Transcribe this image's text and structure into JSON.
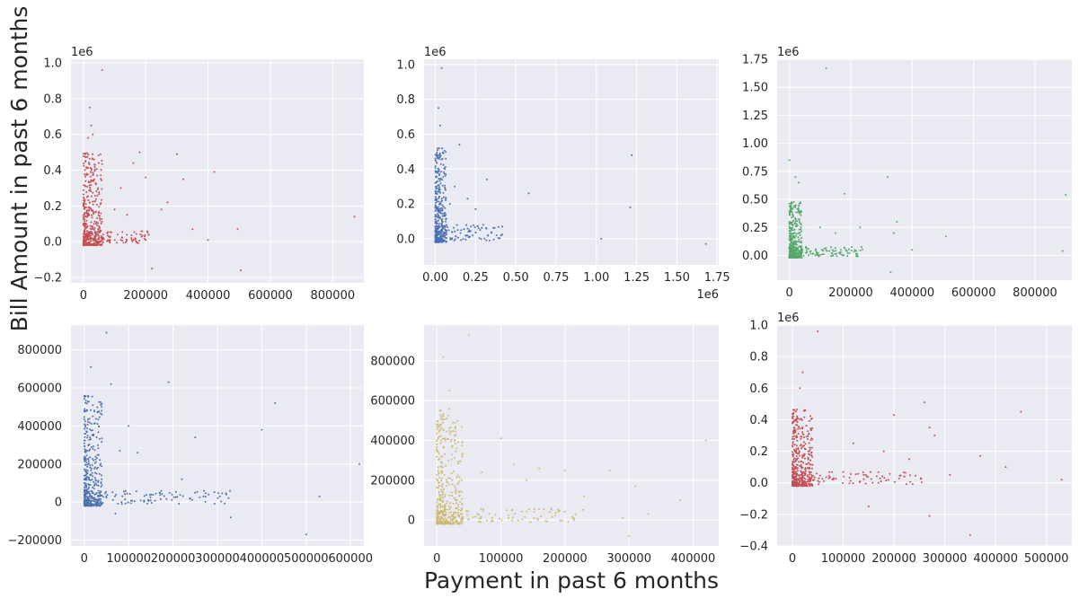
{
  "figure": {
    "ylabel": "Bill Amount in past 6 months",
    "xlabel": "Payment in past 6 months",
    "colors": {
      "background": "#eaeaf2",
      "grid": "#ffffff",
      "text": "#262626"
    }
  },
  "chart_data": [
    {
      "type": "scatter",
      "color": "#c44e52",
      "xlim": [
        -40000,
        900000
      ],
      "ylim": [
        -0.23,
        1.02
      ],
      "xticks": [
        0,
        200000,
        400000,
        600000,
        800000
      ],
      "xticklabels": [
        "0",
        "200000",
        "400000",
        "600000",
        "800000"
      ],
      "yticks": [
        -0.2,
        0,
        0.2,
        0.4,
        0.6,
        0.8,
        1.0
      ],
      "yticklabels": [
        "−0.2",
        "0.0",
        "0.2",
        "0.4",
        "0.6",
        "0.8",
        "1.0"
      ],
      "yoffset": "1e6",
      "xoffset": "",
      "bulk": {
        "xmax": 60000,
        "ymin": -0.02,
        "ymax": 0.5,
        "n": 380,
        "seed": 11
      },
      "tail": {
        "xmax": 210000,
        "ymin": -0.01,
        "ymax": 0.06,
        "n": 110,
        "seed": 12
      },
      "points": [
        [
          60000,
          0.96
        ],
        [
          20000,
          0.75
        ],
        [
          25000,
          0.65
        ],
        [
          30000,
          0.6
        ],
        [
          15000,
          0.58
        ],
        [
          180000,
          0.5
        ],
        [
          300000,
          0.49
        ],
        [
          420000,
          0.39
        ],
        [
          200000,
          0.36
        ],
        [
          320000,
          0.35
        ],
        [
          160000,
          0.44
        ],
        [
          250000,
          0.18
        ],
        [
          270000,
          0.22
        ],
        [
          350000,
          0.07
        ],
        [
          495000,
          0.07
        ],
        [
          400000,
          0.01
        ],
        [
          870000,
          0.14
        ],
        [
          220000,
          -0.15
        ],
        [
          505000,
          -0.16
        ],
        [
          120000,
          0.3
        ],
        [
          100000,
          0.18
        ],
        [
          140000,
          0.15
        ]
      ]
    },
    {
      "type": "scatter",
      "color": "#4c72b0",
      "xlim": [
        -70000,
        1760000
      ],
      "ylim": [
        -0.15,
        1.03
      ],
      "xticks": [
        0,
        250000,
        500000,
        750000,
        1000000,
        1250000,
        1500000,
        1750000
      ],
      "xticklabels": [
        "0.00",
        "0.25",
        "0.50",
        "0.75",
        "1.00",
        "1.25",
        "1.50",
        "1.75"
      ],
      "yticks": [
        0,
        0.2,
        0.4,
        0.6,
        0.8,
        1.0
      ],
      "yticklabels": [
        "0.0",
        "0.2",
        "0.4",
        "0.6",
        "0.8",
        "1.0"
      ],
      "yoffset": "1e6",
      "xoffset": "1e6",
      "bulk": {
        "xmax": 70000,
        "ymin": -0.02,
        "ymax": 0.52,
        "n": 380,
        "seed": 21
      },
      "tail": {
        "xmax": 420000,
        "ymin": -0.01,
        "ymax": 0.08,
        "n": 110,
        "seed": 22
      },
      "points": [
        [
          40000,
          0.98
        ],
        [
          20000,
          0.75
        ],
        [
          30000,
          0.65
        ],
        [
          150000,
          0.54
        ],
        [
          320000,
          0.34
        ],
        [
          580000,
          0.26
        ],
        [
          1220000,
          0.48
        ],
        [
          1210000,
          0.18
        ],
        [
          1030000,
          0.0
        ],
        [
          1680000,
          -0.03
        ],
        [
          120000,
          0.3
        ],
        [
          200000,
          0.23
        ],
        [
          250000,
          0.17
        ],
        [
          90000,
          0.2
        ],
        [
          60000,
          0.4
        ]
      ]
    },
    {
      "type": "scatter",
      "color": "#55a868",
      "xlim": [
        -40000,
        920000
      ],
      "ylim": [
        -0.22,
        1.75
      ],
      "xticks": [
        0,
        200000,
        400000,
        600000,
        800000
      ],
      "xticklabels": [
        "0",
        "200000",
        "400000",
        "600000",
        "800000"
      ],
      "yticks": [
        0,
        0.25,
        0.5,
        0.75,
        1.0,
        1.25,
        1.5,
        1.75
      ],
      "yticklabels": [
        "0.00",
        "0.25",
        "0.50",
        "0.75",
        "1.00",
        "1.25",
        "1.50",
        "1.75"
      ],
      "yoffset": "1e6",
      "xoffset": "",
      "bulk": {
        "xmax": 40000,
        "ymin": -0.02,
        "ymax": 0.48,
        "n": 380,
        "seed": 31
      },
      "tail": {
        "xmax": 240000,
        "ymin": -0.01,
        "ymax": 0.08,
        "n": 110,
        "seed": 32
      },
      "points": [
        [
          120000,
          1.67
        ],
        [
          0,
          0.85
        ],
        [
          20000,
          0.7
        ],
        [
          30000,
          0.65
        ],
        [
          180000,
          0.55
        ],
        [
          320000,
          0.7
        ],
        [
          350000,
          0.3
        ],
        [
          340000,
          0.2
        ],
        [
          510000,
          0.17
        ],
        [
          900000,
          0.54
        ],
        [
          890000,
          0.04
        ],
        [
          330000,
          -0.15
        ],
        [
          400000,
          0.05
        ],
        [
          230000,
          0.25
        ],
        [
          150000,
          0.2
        ],
        [
          100000,
          0.25
        ]
      ]
    },
    {
      "type": "scatter",
      "color": "#4c72b0",
      "xlim": [
        -30000,
        630000
      ],
      "ylim": [
        -230000,
        930000
      ],
      "xticks": [
        0,
        100000,
        200000,
        300000,
        400000,
        500000,
        600000
      ],
      "xticklabels": [
        "0",
        "100000",
        "200000",
        "300000",
        "400000",
        "500000",
        "600000"
      ],
      "yticks": [
        -200000,
        0,
        200000,
        400000,
        600000,
        800000
      ],
      "yticklabels": [
        "−200000",
        "0",
        "200000",
        "400000",
        "600000",
        "800000"
      ],
      "yoffset": "",
      "xoffset": "",
      "bulk": {
        "xmax": 40000,
        "ymin": -20000,
        "ymax": 560000,
        "n": 380,
        "seed": 41
      },
      "tail": {
        "xmax": 330000,
        "ymin": -10000,
        "ymax": 60000,
        "n": 110,
        "seed": 42
      },
      "points": [
        [
          50000,
          890000
        ],
        [
          15000,
          710000
        ],
        [
          60000,
          620000
        ],
        [
          190000,
          630000
        ],
        [
          430000,
          520000
        ],
        [
          400000,
          380000
        ],
        [
          620000,
          200000
        ],
        [
          530000,
          30000
        ],
        [
          500000,
          -170000
        ],
        [
          330000,
          -80000
        ],
        [
          80000,
          270000
        ],
        [
          120000,
          260000
        ],
        [
          250000,
          340000
        ],
        [
          220000,
          120000
        ],
        [
          100000,
          400000
        ],
        [
          70000,
          -60000
        ],
        [
          280000,
          40000
        ]
      ]
    },
    {
      "type": "scatter",
      "color": "#ccb974",
      "xlim": [
        -20000,
        440000
      ],
      "ylim": [
        -130000,
        980000
      ],
      "xticks": [
        0,
        100000,
        200000,
        300000,
        400000
      ],
      "xticklabels": [
        "0",
        "100000",
        "200000",
        "300000",
        "400000"
      ],
      "yticks": [
        0,
        200000,
        400000,
        600000,
        800000
      ],
      "yticklabels": [
        "0",
        "200000",
        "400000",
        "600000",
        "800000"
      ],
      "yoffset": "",
      "xoffset": "",
      "bulk": {
        "xmax": 40000,
        "ymin": -20000,
        "ymax": 560000,
        "n": 380,
        "seed": 51
      },
      "tail": {
        "xmax": 230000,
        "ymin": -10000,
        "ymax": 60000,
        "n": 110,
        "seed": 52
      },
      "points": [
        [
          50000,
          930000
        ],
        [
          10000,
          820000
        ],
        [
          20000,
          650000
        ],
        [
          100000,
          410000
        ],
        [
          120000,
          280000
        ],
        [
          160000,
          260000
        ],
        [
          200000,
          250000
        ],
        [
          270000,
          250000
        ],
        [
          310000,
          170000
        ],
        [
          420000,
          400000
        ],
        [
          380000,
          100000
        ],
        [
          300000,
          -80000
        ],
        [
          70000,
          240000
        ],
        [
          140000,
          200000
        ],
        [
          230000,
          120000
        ],
        [
          330000,
          30000
        ],
        [
          290000,
          10000
        ]
      ]
    },
    {
      "type": "scatter",
      "color": "#c44e52",
      "xlim": [
        -30000,
        550000
      ],
      "ylim": [
        -0.4,
        1.0
      ],
      "xticks": [
        0,
        100000,
        200000,
        300000,
        400000,
        500000
      ],
      "xticklabels": [
        "0",
        "100000",
        "200000",
        "300000",
        "400000",
        "500000"
      ],
      "yticks": [
        -0.4,
        -0.2,
        0,
        0.2,
        0.4,
        0.6,
        0.8,
        1.0
      ],
      "yticklabels": [
        "−0.4",
        "−0.2",
        "0.0",
        "0.2",
        "0.4",
        "0.6",
        "0.8",
        "1.0"
      ],
      "yoffset": "1e6",
      "xoffset": "",
      "bulk": {
        "xmax": 40000,
        "ymin": -0.02,
        "ymax": 0.48,
        "n": 380,
        "seed": 61
      },
      "tail": {
        "xmax": 260000,
        "ymin": -0.01,
        "ymax": 0.07,
        "n": 110,
        "seed": 62
      },
      "points": [
        [
          50000,
          0.96
        ],
        [
          20000,
          0.7
        ],
        [
          15000,
          0.6
        ],
        [
          200000,
          0.43
        ],
        [
          260000,
          0.51
        ],
        [
          270000,
          0.35
        ],
        [
          280000,
          0.3
        ],
        [
          450000,
          0.45
        ],
        [
          370000,
          0.17
        ],
        [
          420000,
          0.1
        ],
        [
          530000,
          0.02
        ],
        [
          350000,
          -0.33
        ],
        [
          270000,
          -0.21
        ],
        [
          150000,
          -0.15
        ],
        [
          230000,
          0.15
        ],
        [
          180000,
          0.2
        ],
        [
          120000,
          0.25
        ],
        [
          310000,
          0.05
        ]
      ]
    }
  ]
}
